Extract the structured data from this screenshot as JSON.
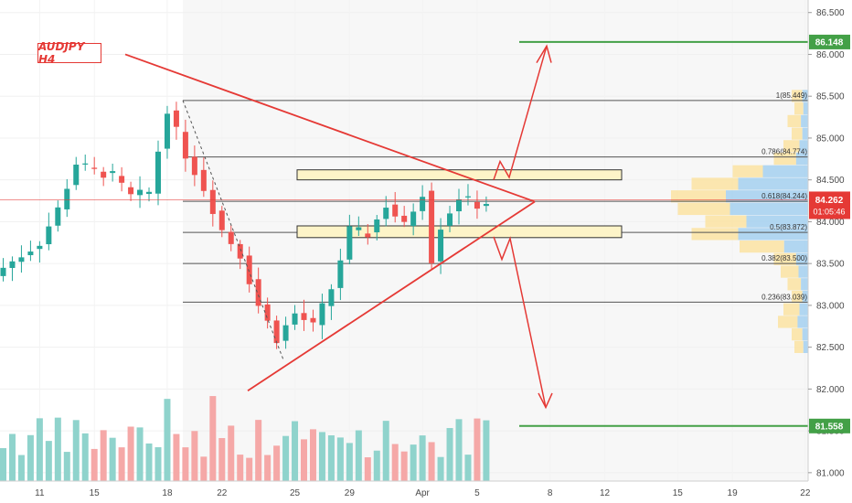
{
  "title": "AUDJPY H4",
  "colors": {
    "up": "#26a69a",
    "down": "#ef5350",
    "vol_up": "#8fd3cc",
    "vol_down": "#f5a8a7",
    "target": "#43a047",
    "price": "#e53935",
    "fib": "#555555",
    "zone_fill": "#fdf4c8",
    "zone_stroke": "#333333"
  },
  "chart_data": {
    "type": "candlestick",
    "title": "AUDJPY H4",
    "y_axis": {
      "min": 80.9,
      "max": 86.65,
      "ticks": [
        "81.000",
        "81.500",
        "82.000",
        "82.500",
        "83.000",
        "83.500",
        "84.000",
        "84.500",
        "85.000",
        "85.500",
        "86.000",
        "86.500"
      ]
    },
    "x_axis_labels": [
      {
        "label": "11",
        "bar": 4
      },
      {
        "label": "15",
        "bar": 10
      },
      {
        "label": "18",
        "bar": 18
      },
      {
        "label": "22",
        "bar": 24
      },
      {
        "label": "25",
        "bar": 32
      },
      {
        "label": "29",
        "bar": 38
      },
      {
        "label": "Apr",
        "bar": 46
      },
      {
        "label": "5",
        "bar": 52
      },
      {
        "label": "8",
        "bar": 60
      },
      {
        "label": "12",
        "bar": 66
      },
      {
        "label": "15",
        "bar": 74
      },
      {
        "label": "19",
        "bar": 80
      },
      {
        "label": "22",
        "bar": 88
      }
    ],
    "current_price": "84.262",
    "countdown": "01:05:46",
    "targets": [
      {
        "label": "86.148",
        "value": 86.148
      },
      {
        "label": "81.558",
        "value": 81.558
      }
    ],
    "fib_levels": [
      {
        "label": "1(85.449)",
        "value": 85.449
      },
      {
        "label": "0.786(84.774)",
        "value": 84.774
      },
      {
        "label": "0.618(84.244)",
        "value": 84.244
      },
      {
        "label": "0.5(83.872)",
        "value": 83.872
      },
      {
        "label": "0.382(83.500)",
        "value": 83.5
      },
      {
        "label": "0.236(83.039)",
        "value": 83.039
      }
    ],
    "zones": [
      {
        "top": 84.62,
        "bottom": 84.5
      },
      {
        "top": 83.95,
        "bottom": 83.81
      }
    ],
    "path": [
      [
        0,
        83.45
      ],
      [
        4,
        83.75
      ],
      [
        6,
        84.15
      ],
      [
        8,
        84.7
      ],
      [
        10,
        84.6
      ],
      [
        12,
        84.55
      ],
      [
        14,
        84.3
      ],
      [
        16,
        84.35
      ],
      [
        18,
        85.35
      ],
      [
        20,
        84.8
      ],
      [
        22,
        84.4
      ],
      [
        24,
        83.9
      ],
      [
        26,
        83.6
      ],
      [
        28,
        83.0
      ],
      [
        30,
        82.6
      ],
      [
        32,
        82.9
      ],
      [
        34,
        82.75
      ],
      [
        36,
        83.2
      ],
      [
        38,
        83.9
      ],
      [
        40,
        83.85
      ],
      [
        42,
        84.2
      ],
      [
        44,
        83.95
      ],
      [
        46,
        84.35
      ],
      [
        47,
        83.55
      ],
      [
        48,
        83.95
      ],
      [
        50,
        84.3
      ],
      [
        52,
        84.2
      ],
      [
        54,
        84.26
      ]
    ],
    "volume_profile": [
      [
        85.5,
        0.12
      ],
      [
        85.35,
        0.1
      ],
      [
        85.2,
        0.15
      ],
      [
        85.05,
        0.12
      ],
      [
        84.9,
        0.18
      ],
      [
        84.75,
        0.25
      ],
      [
        84.6,
        0.55
      ],
      [
        84.45,
        0.85
      ],
      [
        84.3,
        1.0
      ],
      [
        84.15,
        0.95
      ],
      [
        84.0,
        0.75
      ],
      [
        83.85,
        0.85
      ],
      [
        83.7,
        0.5
      ],
      [
        83.55,
        0.25
      ],
      [
        83.4,
        0.2
      ],
      [
        83.25,
        0.15
      ],
      [
        83.1,
        0.12
      ],
      [
        82.95,
        0.18
      ],
      [
        82.8,
        0.22
      ],
      [
        82.65,
        0.12
      ],
      [
        82.5,
        0.1
      ]
    ]
  }
}
